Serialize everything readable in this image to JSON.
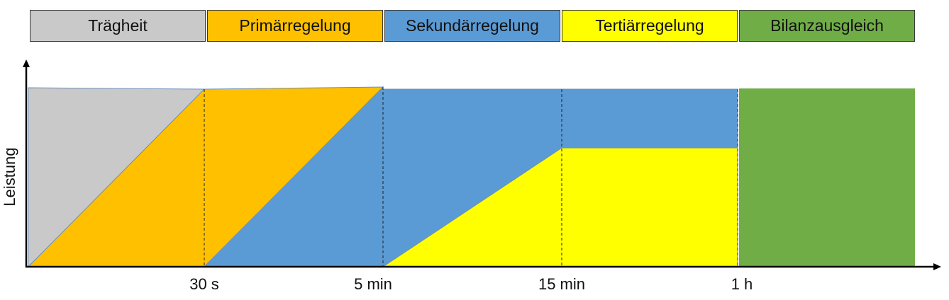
{
  "phases": [
    {
      "label": "Trägheit",
      "color": "#c9c9c9"
    },
    {
      "label": "Primärregelung",
      "color": "#ffc000"
    },
    {
      "label": "Sekundärregelung",
      "color": "#5b9bd5"
    },
    {
      "label": "Tertiärregelung",
      "color": "#ffff00"
    },
    {
      "label": "Bilanzausgleich",
      "color": "#70ad47"
    }
  ],
  "axis": {
    "y_label": "Leistung",
    "x_ticks": [
      "30 s",
      "5 min",
      "15 min",
      "1 h"
    ]
  }
}
